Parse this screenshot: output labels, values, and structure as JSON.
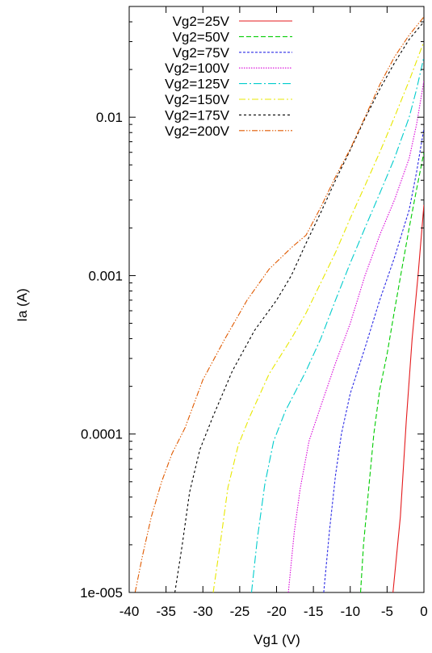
{
  "chart_data": {
    "type": "line",
    "title": "",
    "xlabel": "Vg1 (V)",
    "ylabel": "Ia (A)",
    "xlim": [
      -40,
      0
    ],
    "ylim": [
      1e-05,
      0.05
    ],
    "yscale": "log",
    "grid": false,
    "legend_position": "top-left",
    "x_ticks": [
      {
        "value": -40,
        "label": "-40"
      },
      {
        "value": -35,
        "label": "-35"
      },
      {
        "value": -30,
        "label": "-30"
      },
      {
        "value": -25,
        "label": "-25"
      },
      {
        "value": -20,
        "label": "-20"
      },
      {
        "value": -15,
        "label": "-15"
      },
      {
        "value": -10,
        "label": "-10"
      },
      {
        "value": -5,
        "label": "-5"
      },
      {
        "value": 0,
        "label": "0"
      }
    ],
    "y_ticks": [
      {
        "value": 1e-05,
        "label": "1e-005"
      },
      {
        "value": 0.0001,
        "label": "0.0001"
      },
      {
        "value": 0.001,
        "label": "0.001"
      },
      {
        "value": 0.01,
        "label": "0.01"
      }
    ],
    "series": [
      {
        "name": "Vg2=25V",
        "color": "#e41a1c",
        "dash": "",
        "points": [
          [
            -4.2,
            1e-05
          ],
          [
            -3.2,
            3e-05
          ],
          [
            -2.4,
            0.00012
          ],
          [
            -1.6,
            0.0004
          ],
          [
            -0.8,
            0.001
          ],
          [
            0,
            0.0028
          ]
        ]
      },
      {
        "name": "Vg2=50V",
        "color": "#00cc00",
        "dash": "6,3",
        "points": [
          [
            -8.6,
            1e-05
          ],
          [
            -8.2,
            2e-05
          ],
          [
            -7.5,
            4.5e-05
          ],
          [
            -6.8,
            0.0001
          ],
          [
            -6,
            0.00019
          ],
          [
            -5,
            0.00032
          ],
          [
            -4,
            0.0006
          ],
          [
            -3,
            0.0011
          ],
          [
            -2,
            0.002
          ],
          [
            -1,
            0.0035
          ],
          [
            0,
            0.006
          ]
        ]
      },
      {
        "name": "Vg2=75V",
        "color": "#2c2ce6",
        "dash": "3,2",
        "points": [
          [
            -13.6,
            1e-05
          ],
          [
            -12.8,
            2.5e-05
          ],
          [
            -12,
            5.5e-05
          ],
          [
            -11.2,
            0.0001
          ],
          [
            -10,
            0.00018
          ],
          [
            -8,
            0.00035
          ],
          [
            -6,
            0.0007
          ],
          [
            -4,
            0.0013
          ],
          [
            -2,
            0.0026
          ],
          [
            -1,
            0.0045
          ],
          [
            0,
            0.0085
          ]
        ]
      },
      {
        "name": "Vg2=100V",
        "color": "#d800d8",
        "dash": "1.5,1.5",
        "points": [
          [
            -18.4,
            1e-05
          ],
          [
            -17.6,
            2.4e-05
          ],
          [
            -16.8,
            4.5e-05
          ],
          [
            -15.6,
            9e-05
          ],
          [
            -14,
            0.00015
          ],
          [
            -12,
            0.00028
          ],
          [
            -10,
            0.0005
          ],
          [
            -8,
            0.001
          ],
          [
            -6,
            0.0018
          ],
          [
            -4,
            0.003
          ],
          [
            -2,
            0.0055
          ],
          [
            -1,
            0.009
          ],
          [
            0,
            0.017
          ]
        ]
      },
      {
        "name": "Vg2=125V",
        "color": "#00cccc",
        "dash": "10,3,2,3",
        "points": [
          [
            -23.4,
            1e-05
          ],
          [
            -22.6,
            2.2e-05
          ],
          [
            -21.6,
            4.8e-05
          ],
          [
            -20.4,
            9e-05
          ],
          [
            -18.8,
            0.00014
          ],
          [
            -16,
            0.00025
          ],
          [
            -14,
            0.0004
          ],
          [
            -12,
            0.0007
          ],
          [
            -10,
            0.0012
          ],
          [
            -8,
            0.002
          ],
          [
            -6,
            0.0033
          ],
          [
            -4,
            0.0055
          ],
          [
            -2,
            0.01
          ],
          [
            -1,
            0.015
          ],
          [
            0,
            0.024
          ]
        ]
      },
      {
        "name": "Vg2=150V",
        "color": "#e8e800",
        "dash": "8,3,2,3",
        "points": [
          [
            -28.6,
            1e-05
          ],
          [
            -27.6,
            2.1e-05
          ],
          [
            -26.6,
            4.6e-05
          ],
          [
            -25.2,
            8.5e-05
          ],
          [
            -23.6,
            0.00013
          ],
          [
            -21,
            0.00024
          ],
          [
            -18,
            0.0004
          ],
          [
            -16,
            0.00058
          ],
          [
            -14,
            0.0009
          ],
          [
            -12,
            0.0014
          ],
          [
            -10,
            0.0023
          ],
          [
            -8,
            0.0037
          ],
          [
            -6,
            0.006
          ],
          [
            -4,
            0.01
          ],
          [
            -2,
            0.017
          ],
          [
            0,
            0.03
          ]
        ]
      },
      {
        "name": "Vg2=175V",
        "color": "#000000",
        "dash": "3,3",
        "points": [
          [
            -33.8,
            1e-05
          ],
          [
            -32.8,
            2e-05
          ],
          [
            -31.8,
            4.3e-05
          ],
          [
            -30.4,
            8e-05
          ],
          [
            -28.6,
            0.00013
          ],
          [
            -26,
            0.00025
          ],
          [
            -23,
            0.00045
          ],
          [
            -20,
            0.0007
          ],
          [
            -18,
            0.001
          ],
          [
            -16,
            0.0016
          ],
          [
            -14,
            0.0025
          ],
          [
            -12,
            0.004
          ],
          [
            -10,
            0.0062
          ],
          [
            -8,
            0.0098
          ],
          [
            -6,
            0.015
          ],
          [
            -4,
            0.022
          ],
          [
            -2,
            0.031
          ],
          [
            0,
            0.04
          ]
        ]
      },
      {
        "name": "Vg2=200V",
        "color": "#e05a00",
        "dash": "7,2,1.5,2,1.5,2",
        "points": [
          [
            -39.2,
            1e-05
          ],
          [
            -38.2,
            1.7e-05
          ],
          [
            -37,
            3e-05
          ],
          [
            -35.6,
            5e-05
          ],
          [
            -34.2,
            7.5e-05
          ],
          [
            -32.4,
            0.00011
          ],
          [
            -30,
            0.00022
          ],
          [
            -27,
            0.0004
          ],
          [
            -24,
            0.0007
          ],
          [
            -21,
            0.0011
          ],
          [
            -18,
            0.0015
          ],
          [
            -16,
            0.0018
          ],
          [
            -14,
            0.0027
          ],
          [
            -12,
            0.0042
          ],
          [
            -10,
            0.0063
          ],
          [
            -8,
            0.01
          ],
          [
            -6,
            0.016
          ],
          [
            -4,
            0.024
          ],
          [
            -2,
            0.033
          ],
          [
            0,
            0.043
          ]
        ]
      }
    ]
  }
}
